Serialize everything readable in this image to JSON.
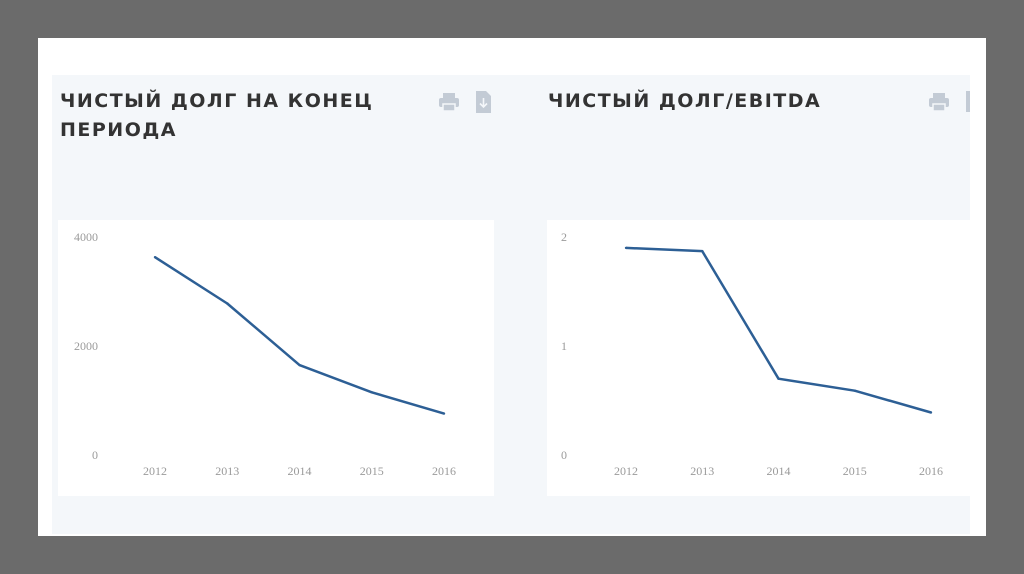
{
  "colors": {
    "frame": "#6b6b6b",
    "slide": "#ffffff",
    "band": "#f4f7fa",
    "line": "#2d5f95",
    "title": "#333333",
    "icon": "#c3cbd5",
    "tick": "#9a9a9a"
  },
  "left": {
    "title_line1": "ЧИСТЫЙ ДОЛГ НА КОНЕЦ",
    "title_line2": "ПЕРИОДА",
    "print_icon": "printer-icon",
    "download_icon": "download-file-icon"
  },
  "right": {
    "title_line1": "ЧИСТЫЙ ДОЛГ/EBITDA",
    "print_icon": "printer-icon",
    "download_icon": "download-file-icon"
  },
  "chart_data": [
    {
      "type": "line",
      "title": "ЧИСТЫЙ ДОЛГ НА КОНЕЦ ПЕРИОДА",
      "x": [
        "2012",
        "2013",
        "2014",
        "2015",
        "2016"
      ],
      "values": [
        3630,
        2780,
        1650,
        1150,
        760
      ],
      "yticks": [
        "4000",
        "2000",
        "0"
      ],
      "ylim": [
        0,
        4000
      ],
      "grid": false,
      "legend": "none"
    },
    {
      "type": "line",
      "title": "ЧИСТЫЙ ДОЛГ/EBITDA",
      "x": [
        "2012",
        "2013",
        "2014",
        "2015",
        "2016"
      ],
      "values": [
        1.9,
        1.87,
        0.7,
        0.59,
        0.39
      ],
      "yticks": [
        "2",
        "1",
        "0"
      ],
      "ylim": [
        0,
        2
      ],
      "grid": false,
      "legend": "none"
    }
  ]
}
